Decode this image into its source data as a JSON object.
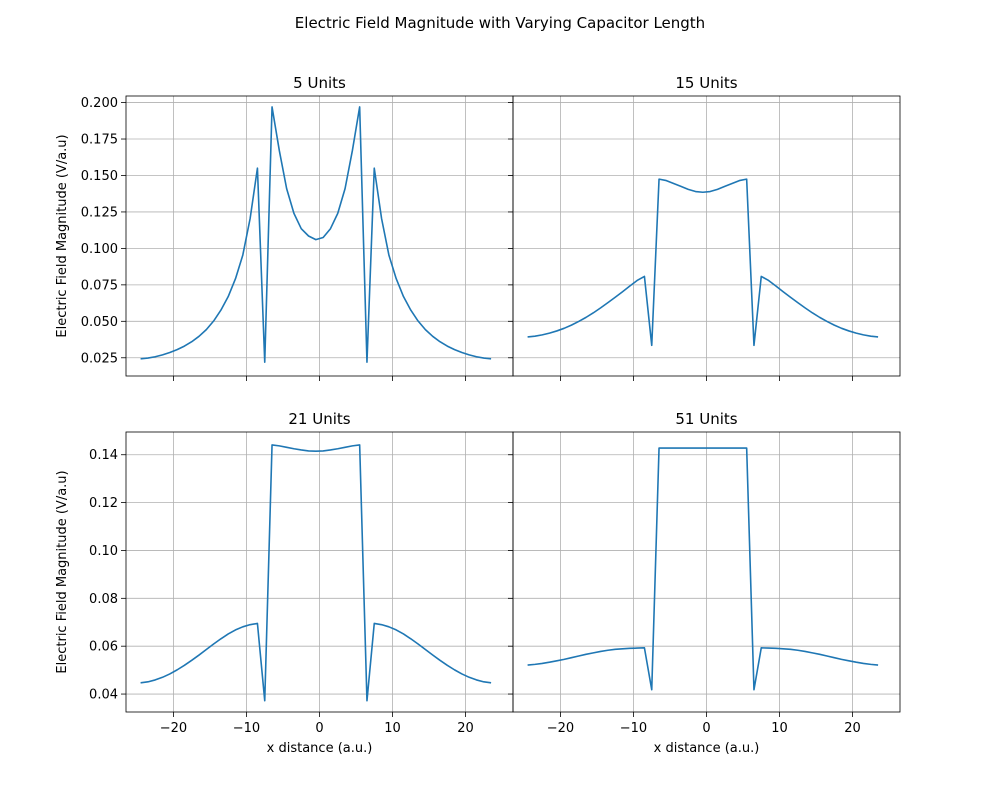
{
  "figure": {
    "title": "Electric Field Magnitude with Varying Capacitor Length"
  },
  "colors": {
    "line": "#1f77b4",
    "grid": "#b0b0b0"
  },
  "chart_data": [
    {
      "type": "line",
      "title": "5 Units",
      "xlabel": "",
      "ylabel": "Electric Field Magnitude (V/a.u)",
      "xlim": [
        -26.5,
        26.5
      ],
      "ylim": [
        0.0125,
        0.2045
      ],
      "xticks": [
        -20,
        -10,
        0,
        10,
        20
      ],
      "yticks": [
        0.025,
        0.05,
        0.075,
        0.1,
        0.125,
        0.15,
        0.175,
        0.2
      ],
      "ytick_labels": [
        "0.025",
        "0.050",
        "0.075",
        "0.100",
        "0.125",
        "0.150",
        "0.175",
        "0.200"
      ],
      "show_xtick_labels": false,
      "show_ytick_labels": true,
      "grid": true,
      "x": [
        -24.5,
        -23.5,
        -22.5,
        -21.5,
        -20.5,
        -19.5,
        -18.5,
        -17.5,
        -16.5,
        -15.5,
        -14.5,
        -13.5,
        -12.5,
        -11.5,
        -10.5,
        -9.5,
        -8.5,
        -7.5,
        -6.5,
        -5.5,
        -4.5,
        -3.5,
        -2.5,
        -1.5,
        -0.5,
        0.5,
        1.5,
        2.5,
        3.5,
        4.5,
        5.5,
        6.5,
        7.5,
        8.5,
        9.5,
        10.5,
        11.5,
        12.5,
        13.5,
        14.5,
        15.5,
        16.5,
        17.5,
        18.5,
        19.5,
        20.5,
        21.5,
        22.5,
        23.5
      ],
      "y": [
        0.0243,
        0.0248,
        0.0257,
        0.027,
        0.0286,
        0.0306,
        0.033,
        0.036,
        0.0397,
        0.0443,
        0.0502,
        0.0577,
        0.067,
        0.0793,
        0.0955,
        0.1205,
        0.155,
        0.022,
        0.197,
        0.167,
        0.141,
        0.124,
        0.1135,
        0.1085,
        0.106,
        0.1075,
        0.1135,
        0.124,
        0.141,
        0.167,
        0.197,
        0.022,
        0.155,
        0.1205,
        0.0955,
        0.0793,
        0.067,
        0.0577,
        0.0502,
        0.0443,
        0.0397,
        0.036,
        0.033,
        0.0306,
        0.0286,
        0.027,
        0.0257,
        0.0248,
        0.0243
      ]
    },
    {
      "type": "line",
      "title": "15 Units",
      "xlabel": "",
      "ylabel": "",
      "xlim": [
        -26.5,
        26.5
      ],
      "ylim": [
        0.0125,
        0.2045
      ],
      "xticks": [
        -20,
        -10,
        0,
        10,
        20
      ],
      "yticks": [
        0.025,
        0.05,
        0.075,
        0.1,
        0.125,
        0.15,
        0.175,
        0.2
      ],
      "show_xtick_labels": false,
      "show_ytick_labels": false,
      "grid": true,
      "x": [
        -24.5,
        -23.5,
        -22.5,
        -21.5,
        -20.5,
        -19.5,
        -18.5,
        -17.5,
        -16.5,
        -15.5,
        -14.5,
        -13.5,
        -12.5,
        -11.5,
        -10.5,
        -9.5,
        -8.5,
        -7.5,
        -6.5,
        -5.5,
        -4.5,
        -3.5,
        -2.5,
        -1.5,
        -0.5,
        0.5,
        1.5,
        2.5,
        3.5,
        4.5,
        5.5,
        6.5,
        7.5,
        8.5,
        9.5,
        10.5,
        11.5,
        12.5,
        13.5,
        14.5,
        15.5,
        16.5,
        17.5,
        18.5,
        19.5,
        20.5,
        21.5,
        22.5,
        23.5
      ],
      "y": [
        0.0393,
        0.0398,
        0.0407,
        0.0419,
        0.0434,
        0.0452,
        0.0474,
        0.0499,
        0.0527,
        0.0558,
        0.0592,
        0.0628,
        0.0665,
        0.0703,
        0.0742,
        0.078,
        0.0808,
        0.0335,
        0.1475,
        0.1465,
        0.1445,
        0.1425,
        0.1405,
        0.139,
        0.1385,
        0.139,
        0.1405,
        0.1425,
        0.1445,
        0.1465,
        0.1475,
        0.0335,
        0.0808,
        0.078,
        0.0742,
        0.0703,
        0.0665,
        0.0628,
        0.0592,
        0.0558,
        0.0527,
        0.0499,
        0.0474,
        0.0452,
        0.0434,
        0.0419,
        0.0407,
        0.0398,
        0.0393
      ]
    },
    {
      "type": "line",
      "title": "21 Units",
      "xlabel": "x distance (a.u.)",
      "ylabel": "Electric Field Magnitude (V/a.u)",
      "xlim": [
        -26.5,
        26.5
      ],
      "ylim": [
        0.0325,
        0.1495
      ],
      "xticks": [
        -20,
        -10,
        0,
        10,
        20
      ],
      "xtick_labels": [
        "−20",
        "−10",
        "0",
        "10",
        "20"
      ],
      "yticks": [
        0.04,
        0.06,
        0.08,
        0.1,
        0.12,
        0.14
      ],
      "ytick_labels": [
        "0.04",
        "0.06",
        "0.08",
        "0.10",
        "0.12",
        "0.14"
      ],
      "show_xtick_labels": true,
      "show_ytick_labels": true,
      "grid": true,
      "x": [
        -24.5,
        -23.5,
        -22.5,
        -21.5,
        -20.5,
        -19.5,
        -18.5,
        -17.5,
        -16.5,
        -15.5,
        -14.5,
        -13.5,
        -12.5,
        -11.5,
        -10.5,
        -9.5,
        -8.5,
        -7.5,
        -6.5,
        -5.5,
        -4.5,
        -3.5,
        -2.5,
        -1.5,
        -0.5,
        0.5,
        1.5,
        2.5,
        3.5,
        4.5,
        5.5,
        6.5,
        7.5,
        8.5,
        9.5,
        10.5,
        11.5,
        12.5,
        13.5,
        14.5,
        15.5,
        16.5,
        17.5,
        18.5,
        19.5,
        20.5,
        21.5,
        22.5,
        23.5
      ],
      "y": [
        0.0447,
        0.0451,
        0.0459,
        0.047,
        0.0484,
        0.0501,
        0.052,
        0.0541,
        0.0563,
        0.0586,
        0.0609,
        0.0631,
        0.0651,
        0.0668,
        0.0681,
        0.069,
        0.0695,
        0.0372,
        0.1441,
        0.1437,
        0.1431,
        0.1425,
        0.142,
        0.1416,
        0.1415,
        0.1416,
        0.142,
        0.1425,
        0.1431,
        0.1437,
        0.1441,
        0.0372,
        0.0695,
        0.069,
        0.0681,
        0.0668,
        0.0651,
        0.0631,
        0.0609,
        0.0586,
        0.0563,
        0.0541,
        0.052,
        0.0501,
        0.0484,
        0.047,
        0.0459,
        0.0451,
        0.0447
      ]
    },
    {
      "type": "line",
      "title": "51 Units",
      "xlabel": "x distance (a.u.)",
      "ylabel": "",
      "xlim": [
        -26.5,
        26.5
      ],
      "ylim": [
        0.0325,
        0.1495
      ],
      "xticks": [
        -20,
        -10,
        0,
        10,
        20
      ],
      "xtick_labels": [
        "−20",
        "−10",
        "0",
        "10",
        "20"
      ],
      "yticks": [
        0.04,
        0.06,
        0.08,
        0.1,
        0.12,
        0.14
      ],
      "show_xtick_labels": true,
      "show_ytick_labels": false,
      "grid": true,
      "x": [
        -24.5,
        -23.5,
        -22.5,
        -21.5,
        -20.5,
        -19.5,
        -18.5,
        -17.5,
        -16.5,
        -15.5,
        -14.5,
        -13.5,
        -12.5,
        -11.5,
        -10.5,
        -9.5,
        -8.5,
        -7.5,
        -6.5,
        -5.5,
        -4.5,
        -3.5,
        -2.5,
        -1.5,
        -0.5,
        0.5,
        1.5,
        2.5,
        3.5,
        4.5,
        5.5,
        6.5,
        7.5,
        8.5,
        9.5,
        10.5,
        11.5,
        12.5,
        13.5,
        14.5,
        15.5,
        16.5,
        17.5,
        18.5,
        19.5,
        20.5,
        21.5,
        22.5,
        23.5
      ],
      "y": [
        0.0521,
        0.0524,
        0.0528,
        0.0533,
        0.0539,
        0.0545,
        0.0552,
        0.0559,
        0.0566,
        0.0572,
        0.0578,
        0.0583,
        0.0587,
        0.0589,
        0.0591,
        0.0592,
        0.0593,
        0.0418,
        0.1428,
        0.1428,
        0.1428,
        0.1428,
        0.1428,
        0.1428,
        0.1428,
        0.1428,
        0.1428,
        0.1428,
        0.1428,
        0.1428,
        0.1428,
        0.0418,
        0.0593,
        0.0592,
        0.0591,
        0.0589,
        0.0587,
        0.0583,
        0.0578,
        0.0572,
        0.0566,
        0.0559,
        0.0552,
        0.0545,
        0.0539,
        0.0533,
        0.0528,
        0.0524,
        0.0521
      ]
    }
  ]
}
